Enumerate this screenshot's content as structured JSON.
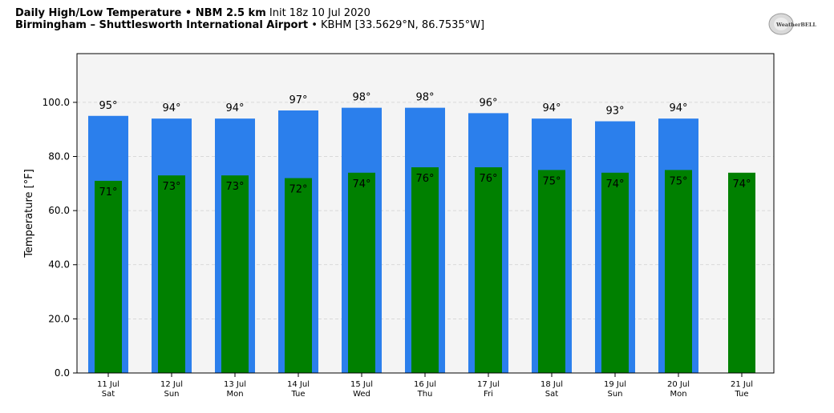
{
  "header": {
    "line1_bold": "Daily High/Low Temperature • NBM 2.5 km",
    "line1_normal": "Init 18z 10 Jul 2020",
    "line2_bold": "Birmingham – Shuttlesworth International Airport",
    "line2_normal": "• KBHM [33.5629°N, 86.7535°W]"
  },
  "logo": {
    "text": "WeatherBELL"
  },
  "colors": {
    "high": "#2b7fec",
    "low": "#008000",
    "plot_bg": "#f4f4f4"
  },
  "chart_data": {
    "type": "bar",
    "ylabel": "Temperature [°F]",
    "ylim": [
      0,
      118
    ],
    "yticks": [
      "0.0",
      "20.0",
      "40.0",
      "60.0",
      "80.0",
      "100.0"
    ],
    "ytick_values": [
      0,
      20,
      40,
      60,
      80,
      100
    ],
    "grid": true,
    "categories": [
      {
        "date": "11 Jul",
        "day": "Sat"
      },
      {
        "date": "12 Jul",
        "day": "Sun"
      },
      {
        "date": "13 Jul",
        "day": "Mon"
      },
      {
        "date": "14 Jul",
        "day": "Tue"
      },
      {
        "date": "15 Jul",
        "day": "Wed"
      },
      {
        "date": "16 Jul",
        "day": "Thu"
      },
      {
        "date": "17 Jul",
        "day": "Fri"
      },
      {
        "date": "18 Jul",
        "day": "Sat"
      },
      {
        "date": "19 Jul",
        "day": "Sun"
      },
      {
        "date": "20 Jul",
        "day": "Mon"
      },
      {
        "date": "21 Jul",
        "day": "Tue"
      }
    ],
    "series": [
      {
        "values": [
          95,
          94,
          94,
          97,
          98,
          98,
          96,
          94,
          93,
          94,
          null
        ],
        "labels": [
          "95°",
          "94°",
          "94°",
          "97°",
          "98°",
          "98°",
          "96°",
          "94°",
          "93°",
          "94°",
          ""
        ]
      },
      {
        "values": [
          71,
          73,
          73,
          72,
          74,
          76,
          76,
          75,
          74,
          75,
          74
        ],
        "labels": [
          "71°",
          "73°",
          "73°",
          "72°",
          "74°",
          "76°",
          "76°",
          "75°",
          "74°",
          "75°",
          "74°"
        ]
      }
    ]
  }
}
